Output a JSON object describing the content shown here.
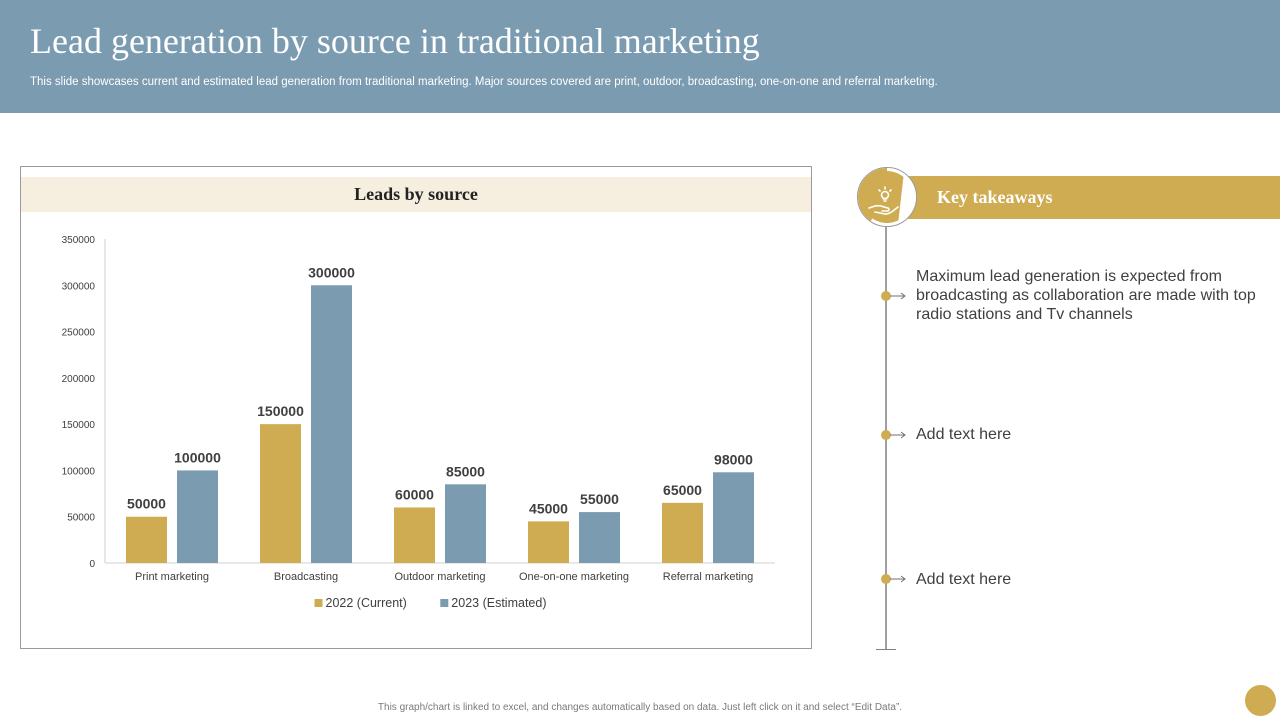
{
  "header": {
    "title": "Lead generation by source in traditional marketing",
    "subtitle": "This slide showcases current and estimated lead generation from traditional marketing. Major sources covered are print, outdoor, broadcasting, one-on-one and referral marketing."
  },
  "chart_data": {
    "type": "bar",
    "title": "Leads by source",
    "categories": [
      "Print marketing",
      "Broadcasting",
      "Outdoor marketing",
      "One-on-one marketing",
      "Referral marketing"
    ],
    "series": [
      {
        "name": "2022 (Current)",
        "values": [
          50000,
          150000,
          60000,
          45000,
          65000
        ],
        "color": "#cfac52"
      },
      {
        "name": "2023 (Estimated)",
        "values": [
          100000,
          300000,
          85000,
          55000,
          98000
        ],
        "color": "#7a9bb0"
      }
    ],
    "ylim": [
      0,
      350000
    ],
    "yticks": [
      "0",
      "50000",
      "100000",
      "150000",
      "200000",
      "250000",
      "300000",
      "350000"
    ],
    "grid": false,
    "legend": "bottom"
  },
  "takeaways": {
    "title": "Key takeaways",
    "icon": "hand-holding-idea-icon",
    "items": [
      "Maximum lead generation is expected from broadcasting as collaboration are made with top radio stations and Tv channels",
      "Add text here",
      "Add text here"
    ]
  },
  "footer": {
    "note": "This graph/chart is linked to excel, and changes automatically based on data. Just left click on it and select “Edit Data”."
  },
  "colors": {
    "header": "#7a9bb0",
    "accent_gold": "#cfac52",
    "accent_blue": "#7a9bb0",
    "title_band": "#f6eedf"
  }
}
